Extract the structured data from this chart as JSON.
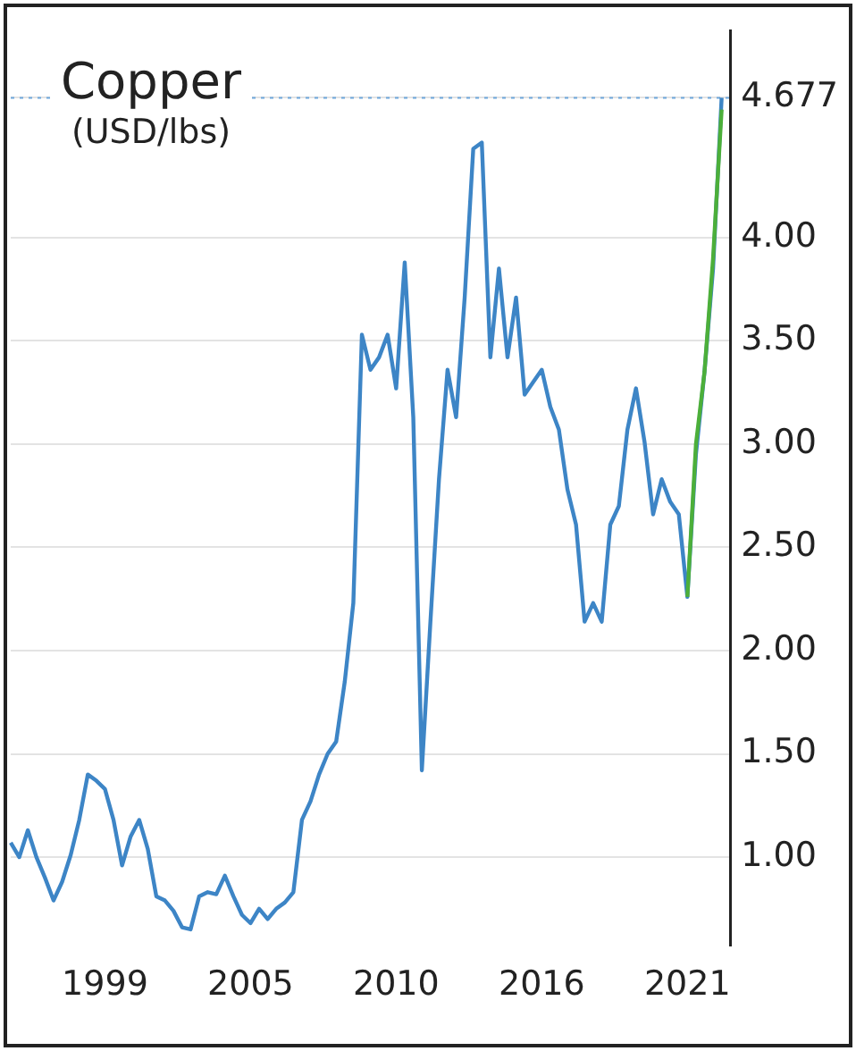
{
  "chart_data": {
    "type": "line",
    "title": "Copper",
    "subtitle": "(USD/lbs)",
    "categories": [
      null,
      null,
      null,
      null,
      null,
      null,
      null,
      null,
      null,
      null,
      null,
      "1999",
      null,
      null,
      null,
      null,
      null,
      null,
      null,
      null,
      null,
      null,
      null,
      null,
      null,
      null,
      null,
      null,
      "2005",
      null,
      null,
      null,
      null,
      null,
      null,
      null,
      null,
      null,
      null,
      null,
      null,
      null,
      null,
      null,
      null,
      "2010",
      null,
      null,
      null,
      null,
      null,
      null,
      null,
      null,
      null,
      null,
      null,
      null,
      null,
      null,
      null,
      null,
      "2016",
      null,
      null,
      null,
      null,
      null,
      null,
      null,
      null,
      null,
      null,
      null,
      null,
      null,
      null,
      null,
      null,
      "2021",
      null,
      null,
      null,
      null,
      null
    ],
    "series": [
      {
        "color": "#3d85c6",
        "values": [
          1.07,
          1.0,
          1.13,
          1.0,
          0.9,
          0.79,
          0.88,
          1.01,
          1.18,
          1.4,
          1.37,
          1.33,
          1.18,
          0.96,
          1.1,
          1.18,
          1.04,
          0.81,
          0.79,
          0.74,
          0.66,
          0.65,
          0.81,
          0.83,
          0.82,
          0.91,
          0.81,
          0.72,
          0.68,
          0.75,
          0.7,
          0.75,
          0.78,
          0.83,
          1.18,
          1.27,
          1.4,
          1.5,
          1.56,
          1.85,
          2.23,
          3.53,
          3.36,
          3.42,
          3.53,
          3.27,
          3.88,
          3.13,
          1.42,
          2.14,
          2.83,
          3.36,
          3.13,
          3.71,
          4.43,
          4.46,
          3.42,
          3.85,
          3.42,
          3.71,
          3.24,
          3.3,
          3.36,
          3.18,
          3.07,
          2.78,
          2.61,
          2.14,
          2.23,
          2.14,
          2.61,
          2.7,
          3.07,
          3.27,
          3.01,
          2.66,
          2.83,
          2.72,
          2.66,
          2.26,
          2.95,
          3.35,
          3.85,
          4.677,
          null
        ]
      },
      {
        "color": "#4caf3a",
        "values": [
          null,
          null,
          null,
          null,
          null,
          null,
          null,
          null,
          null,
          null,
          null,
          null,
          null,
          null,
          null,
          null,
          null,
          null,
          null,
          null,
          null,
          null,
          null,
          null,
          null,
          null,
          null,
          null,
          null,
          null,
          null,
          null,
          null,
          null,
          null,
          null,
          null,
          null,
          null,
          null,
          null,
          null,
          null,
          null,
          null,
          null,
          null,
          null,
          null,
          null,
          null,
          null,
          null,
          null,
          null,
          null,
          null,
          null,
          null,
          null,
          null,
          null,
          null,
          null,
          null,
          null,
          null,
          null,
          null,
          null,
          null,
          null,
          null,
          null,
          null,
          null,
          null,
          null,
          null,
          2.26,
          3.0,
          3.35,
          3.9,
          4.62,
          null
        ]
      }
    ],
    "ylim": [
      0.57,
      5.0
    ],
    "yticks": [
      {
        "value": 1,
        "label": "1.00"
      },
      {
        "value": 1.5,
        "label": "1.50"
      },
      {
        "value": 2,
        "label": "2.00"
      },
      {
        "value": 2.5,
        "label": "2.50"
      },
      {
        "value": 3,
        "label": "3.00"
      },
      {
        "value": 3.5,
        "label": "3.50"
      },
      {
        "value": 4,
        "label": "4.00"
      },
      4.677
    ],
    "ref_lines": [
      {
        "axis": "y",
        "value": 4.677,
        "color": "#6fa8dc",
        "line_style": "dotted"
      }
    ],
    "grid": "y",
    "legend": false,
    "marker": "none",
    "line_style": "solid"
  }
}
